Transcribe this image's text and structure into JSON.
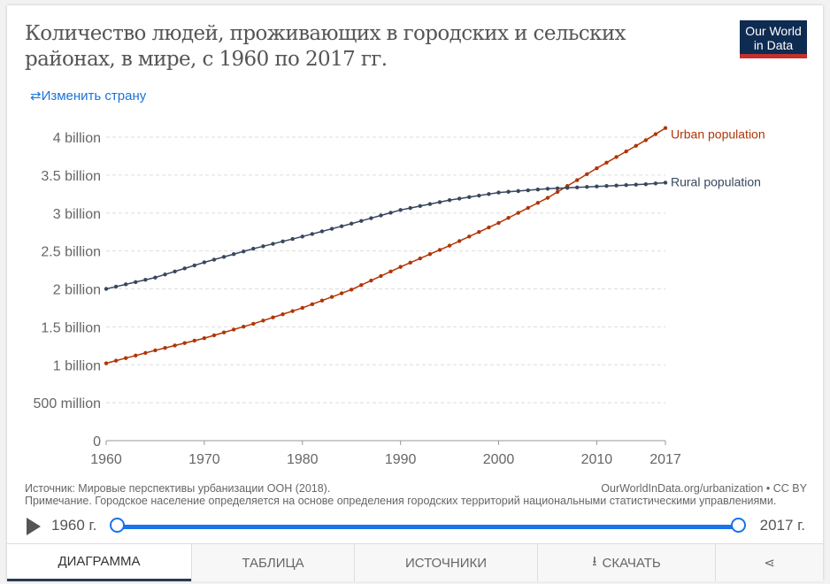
{
  "header": {
    "title": "Количество людей, проживающих в городских и сельских районах, в мире, с 1960 по 2017 гг.",
    "logo": "Our World in Data",
    "change_country": "Изменить страну",
    "change_icon": "swap-arrows-icon"
  },
  "chart_data": {
    "type": "line",
    "title": "Количество людей, проживающих в городских и сельских районах, в мире, с 1960 по 2017 гг.",
    "x_ticks": [
      "1960",
      "1970",
      "1980",
      "1990",
      "2000",
      "2010",
      "2017"
    ],
    "y_ticks": [
      "0",
      "500 million",
      "1 billion",
      "1.5 billion",
      "2 billion",
      "2.5 billion",
      "3 billion",
      "3.5 billion",
      "4 billion"
    ],
    "xlim": [
      1960,
      2017
    ],
    "ylim": [
      0,
      4000000000
    ],
    "grid": "horizontal dashed",
    "legend": "line-end labels",
    "x": [
      1960,
      1961,
      1962,
      1963,
      1964,
      1965,
      1966,
      1967,
      1968,
      1969,
      1970,
      1971,
      1972,
      1973,
      1974,
      1975,
      1976,
      1977,
      1978,
      1979,
      1980,
      1981,
      1982,
      1983,
      1984,
      1985,
      1986,
      1987,
      1988,
      1989,
      1990,
      1991,
      1992,
      1993,
      1994,
      1995,
      1996,
      1997,
      1998,
      1999,
      2000,
      2001,
      2002,
      2003,
      2004,
      2005,
      2006,
      2007,
      2008,
      2009,
      2010,
      2011,
      2012,
      2013,
      2014,
      2015,
      2016,
      2017
    ],
    "unit": "billion",
    "series": [
      {
        "name": "Urban population",
        "color": "#b13507",
        "values": [
          1.02,
          1.054,
          1.088,
          1.122,
          1.156,
          1.19,
          1.222,
          1.254,
          1.286,
          1.318,
          1.35,
          1.388,
          1.426,
          1.464,
          1.502,
          1.54,
          1.582,
          1.624,
          1.666,
          1.708,
          1.75,
          1.798,
          1.846,
          1.894,
          1.942,
          1.99,
          2.05,
          2.11,
          2.17,
          2.23,
          2.29,
          2.346,
          2.402,
          2.458,
          2.514,
          2.57,
          2.63,
          2.69,
          2.75,
          2.81,
          2.87,
          2.936,
          3.002,
          3.068,
          3.134,
          3.2,
          3.278,
          3.356,
          3.434,
          3.512,
          3.59,
          3.664,
          3.738,
          3.812,
          3.886,
          3.96,
          4.04,
          4.12
        ]
      },
      {
        "name": "Rural population",
        "color": "#38475e",
        "values": [
          2.0,
          2.03,
          2.06,
          2.09,
          2.12,
          2.15,
          2.19,
          2.23,
          2.27,
          2.31,
          2.35,
          2.386,
          2.422,
          2.458,
          2.494,
          2.53,
          2.562,
          2.594,
          2.626,
          2.658,
          2.69,
          2.724,
          2.758,
          2.792,
          2.826,
          2.86,
          2.896,
          2.932,
          2.968,
          3.004,
          3.04,
          3.066,
          3.092,
          3.118,
          3.144,
          3.17,
          3.19,
          3.21,
          3.23,
          3.25,
          3.27,
          3.28,
          3.29,
          3.3,
          3.31,
          3.32,
          3.326,
          3.332,
          3.338,
          3.344,
          3.35,
          3.356,
          3.362,
          3.368,
          3.374,
          3.38,
          3.39,
          3.4
        ]
      }
    ]
  },
  "footer": {
    "source": "Источник: Мировые перспективы урбанизации ООН (2018).",
    "link": "OurWorldInData.org/urbanization • CC BY",
    "note": "Примечание. Городское население определяется на основе определения городских территорий национальными статистическими управлениями."
  },
  "timeline": {
    "start": "1960 г.",
    "end": "2017 г.",
    "play_icon": "play-icon"
  },
  "tabs": [
    {
      "label": "ДИАГРАММА",
      "active": true
    },
    {
      "label": "ТАБЛИЦА"
    },
    {
      "label": "ИСТОЧНИКИ"
    },
    {
      "label": "СКАЧАТЬ",
      "icon": "download-icon"
    },
    {
      "label": "",
      "icon": "share-icon"
    }
  ]
}
